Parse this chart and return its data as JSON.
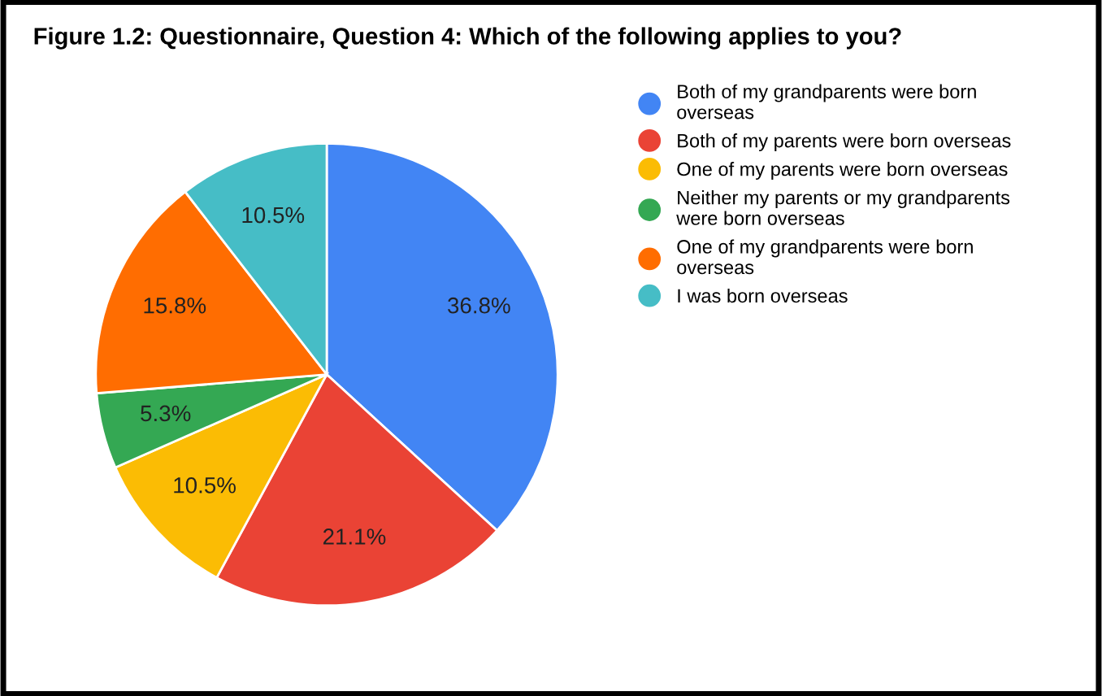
{
  "chart_data": {
    "type": "pie",
    "title": "Figure 1.2: Questionnaire, Question 4: Which of the following applies to you?",
    "categories": [
      "Both of my grandparents were born overseas",
      "Both of my parents were born overseas",
      "One of my parents were born overseas",
      "Neither my parents or my grandparents were born overseas",
      "One of my grandparents were born overseas",
      "I was born overseas"
    ],
    "values": [
      36.8,
      21.1,
      10.5,
      5.3,
      15.8,
      10.5
    ],
    "colors": [
      "#4285f4",
      "#ea4335",
      "#fbbc04",
      "#34a853",
      "#ff6d01",
      "#46bdc6"
    ],
    "value_labels": [
      "36.8%",
      "21.1%",
      "10.5%",
      "5.3%",
      "15.8%",
      "10.5%"
    ],
    "legend": "right"
  }
}
